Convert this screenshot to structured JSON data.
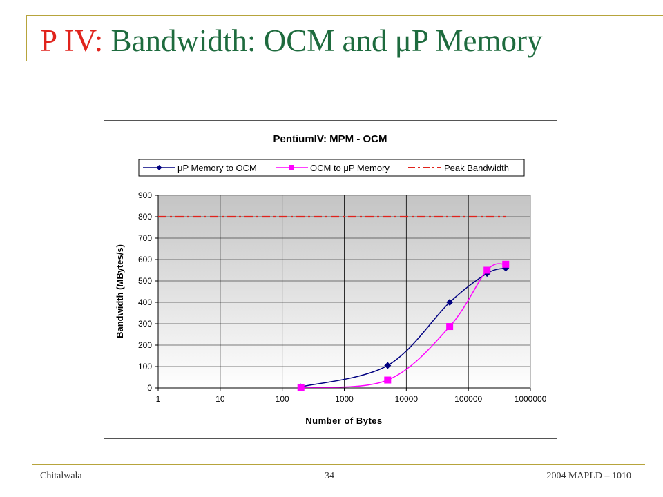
{
  "slide": {
    "title_prefix": "P IV:",
    "title_main": "Bandwidth: OCM and μP Memory",
    "footer_left": "Chitalwala",
    "footer_center": "34",
    "footer_right": "2004 MAPLD – 1010"
  },
  "colors": {
    "title_prefix": "#e0231c",
    "title_main": "#1e6b3e",
    "series1": "#000080",
    "series2": "#ff00ff",
    "peak": "#e0231c"
  },
  "chart_data": {
    "type": "line",
    "title": "PentiumIV: MPM - OCM",
    "xlabel": "Number of Bytes",
    "ylabel": "Bandwidth (MBytes/s)",
    "x_scale": "log",
    "xlim": [
      1,
      1000000
    ],
    "ylim": [
      0,
      900
    ],
    "x_ticks": [
      "1",
      "10",
      "100",
      "1000",
      "10000",
      "100000",
      "1000000"
    ],
    "y_ticks": [
      "0",
      "100",
      "200",
      "300",
      "400",
      "500",
      "600",
      "700",
      "800",
      "900"
    ],
    "grid": true,
    "legend_position": "top",
    "series": [
      {
        "name": "μP Memory to OCM",
        "marker": "diamond",
        "color": "#000080",
        "x": [
          200,
          5000,
          50000,
          200000,
          400000
        ],
        "y": [
          5,
          105,
          400,
          535,
          560
        ]
      },
      {
        "name": "OCM to μP Memory",
        "marker": "square",
        "color": "#ff00ff",
        "x": [
          200,
          5000,
          50000,
          200000,
          400000
        ],
        "y": [
          2,
          37,
          287,
          550,
          578
        ]
      },
      {
        "name": "Peak Bandwidth",
        "marker": "none",
        "style": "dash-dot",
        "color": "#e0231c",
        "x": [
          1,
          400000
        ],
        "y": [
          800,
          800
        ]
      }
    ]
  }
}
